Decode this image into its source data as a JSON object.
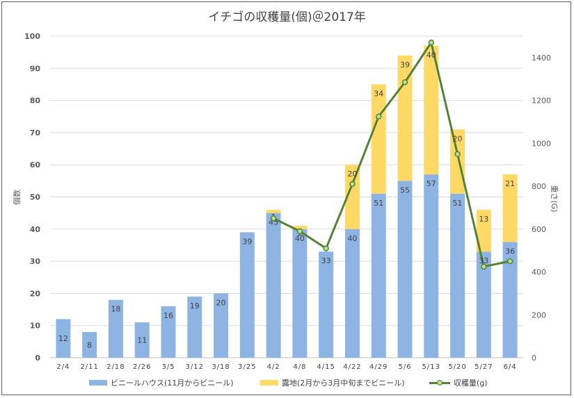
{
  "chart_data": {
    "type": "bar",
    "title": "イチゴの収穫量(個)＠2017年",
    "ylabel": "個数",
    "y2label": "重さ(G)",
    "ylim": [
      0,
      100
    ],
    "y2lim": [
      0,
      1500
    ],
    "yticks": [
      "0",
      "10",
      "20",
      "30",
      "40",
      "50",
      "60",
      "70",
      "80",
      "90",
      "100"
    ],
    "y2ticks": [
      "0",
      "200",
      "400",
      "600",
      "800",
      "1000",
      "1200",
      "1400"
    ],
    "categories": [
      "2/4",
      "2/11",
      "2/18",
      "2/26",
      "3/5",
      "3/12",
      "3/18",
      "3/25",
      "4/2",
      "4/8",
      "4/15",
      "4/22",
      "4/29",
      "5/6",
      "5/13",
      "5/20",
      "5/27",
      "6/4"
    ],
    "series": [
      {
        "name": "ビニールハウス(11月からビニール)",
        "type": "stacked-bar",
        "color": "#8db4e2",
        "values": [
          12,
          8,
          18,
          11,
          16,
          19,
          20,
          39,
          45,
          40,
          33,
          40,
          51,
          55,
          57,
          51,
          33,
          36
        ]
      },
      {
        "name": "露地(2月から3月中旬までビニール)",
        "type": "stacked-bar",
        "color": "#ffd966",
        "values": [
          null,
          null,
          null,
          null,
          null,
          null,
          null,
          null,
          1,
          1,
          null,
          20,
          34,
          39,
          40,
          20,
          13,
          21
        ]
      },
      {
        "name": "収穫量(g)",
        "type": "line",
        "axis": "right",
        "color": "#548235",
        "values": [
          null,
          null,
          null,
          null,
          null,
          null,
          null,
          null,
          650,
          590,
          510,
          810,
          1125,
          1285,
          1470,
          950,
          425,
          450
        ]
      }
    ]
  },
  "legend": {
    "item1": "ビニールハウス(11月からビニール)",
    "item2": "露地(2月から3月中旬までビニール)",
    "item3": "収穫量(g)"
  }
}
